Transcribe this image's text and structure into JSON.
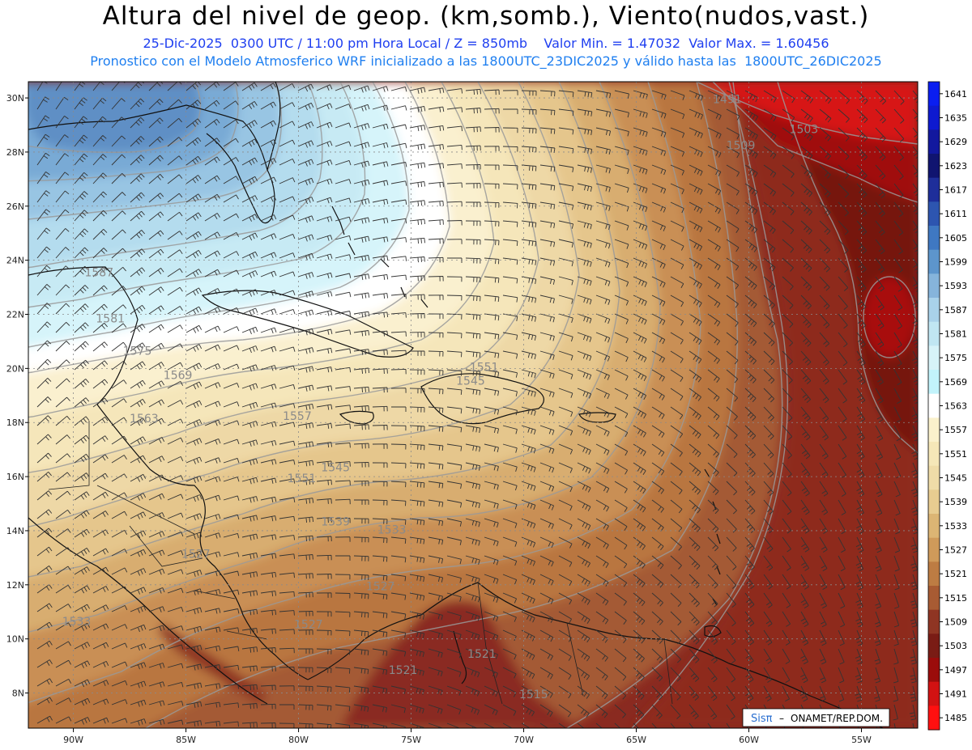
{
  "header": {
    "title": "Altura del nivel de geop. (km,somb.), Viento(nudos,vast.)",
    "line1": "25-Dic-2025  0300 UTC / 11:00 pm Hora Local / Z = 850mb    Valor Min. = 1.47032  Valor Max. = 1.60456",
    "line2": "Pronostico con el Modelo Atmosferico WRF inicializado a las 1800UTC_23DIC2025 y válido hasta las  1800UTC_26DIC2025"
  },
  "map": {
    "lon_range": [
      -92,
      -52.5
    ],
    "lat_range": [
      6.7,
      30.6
    ],
    "x_ticks": [
      {
        "lon": -90,
        "label": "90W"
      },
      {
        "lon": -85,
        "label": "85W"
      },
      {
        "lon": -80,
        "label": "80W"
      },
      {
        "lon": -75,
        "label": "75W"
      },
      {
        "lon": -70,
        "label": "70W"
      },
      {
        "lon": -65,
        "label": "65W"
      },
      {
        "lon": -60,
        "label": "60W"
      },
      {
        "lon": -55,
        "label": "55W"
      }
    ],
    "y_ticks": [
      {
        "lat": 30,
        "label": "30N"
      },
      {
        "lat": 28,
        "label": "28N"
      },
      {
        "lat": 26,
        "label": "26N"
      },
      {
        "lat": 24,
        "label": "24N"
      },
      {
        "lat": 22,
        "label": "22N"
      },
      {
        "lat": 20,
        "label": "20N"
      },
      {
        "lat": 18,
        "label": "18N"
      },
      {
        "lat": 16,
        "label": "16N"
      },
      {
        "lat": 14,
        "label": "14N"
      },
      {
        "lat": 12,
        "label": "12N"
      },
      {
        "lat": 10,
        "label": "10N"
      },
      {
        "lat": 8,
        "label": "8N"
      }
    ],
    "contour_labels": [
      {
        "lon": -89.5,
        "lat": 23.4,
        "text": "1587"
      },
      {
        "lon": -89.0,
        "lat": 21.7,
        "text": "1581"
      },
      {
        "lon": -87.8,
        "lat": 20.5,
        "text": "1575"
      },
      {
        "lon": -86.0,
        "lat": 19.6,
        "text": "1569"
      },
      {
        "lon": -87.5,
        "lat": 18.0,
        "text": "1563"
      },
      {
        "lon": -80.7,
        "lat": 18.1,
        "text": "1557"
      },
      {
        "lon": -80.5,
        "lat": 15.8,
        "text": "1551"
      },
      {
        "lon": -79.0,
        "lat": 16.2,
        "text": "1545"
      },
      {
        "lon": -79.0,
        "lat": 14.2,
        "text": "1539"
      },
      {
        "lon": -76.5,
        "lat": 13.9,
        "text": "1533"
      },
      {
        "lon": -85.2,
        "lat": 13.0,
        "text": "1527"
      },
      {
        "lon": -77.0,
        "lat": 11.8,
        "text": "1527"
      },
      {
        "lon": -80.2,
        "lat": 10.4,
        "text": "1527"
      },
      {
        "lon": -76.0,
        "lat": 8.7,
        "text": "1521"
      },
      {
        "lon": -72.5,
        "lat": 9.3,
        "text": "1521"
      },
      {
        "lon": -70.2,
        "lat": 7.8,
        "text": "1515"
      },
      {
        "lon": -61.6,
        "lat": 29.8,
        "text": "1491"
      },
      {
        "lon": -58.2,
        "lat": 28.7,
        "text": "1503"
      },
      {
        "lon": -61.0,
        "lat": 28.1,
        "text": "1509"
      },
      {
        "lon": -72.4,
        "lat": 19.9,
        "text": "1551"
      },
      {
        "lon": -73.0,
        "lat": 19.4,
        "text": "1545"
      },
      {
        "lon": -90.5,
        "lat": 10.5,
        "text": "1533"
      }
    ]
  },
  "colorbar": {
    "levels": [
      "1641",
      "1635",
      "1629",
      "1623",
      "1617",
      "1611",
      "1605",
      "1599",
      "1593",
      "1587",
      "1581",
      "1575",
      "1569",
      "1563",
      "1557",
      "1551",
      "1545",
      "1539",
      "1533",
      "1527",
      "1521",
      "1515",
      "1509",
      "1503",
      "1497",
      "1491",
      "1485"
    ],
    "colors": [
      "#0a1ef0",
      "#0e1ad0",
      "#12189e",
      "#101470",
      "#1e2e9a",
      "#2d55b0",
      "#3f78c2",
      "#5d95cc",
      "#86b4db",
      "#a9d2ea",
      "#c0e6f2",
      "#d7f3f8",
      "#c2f3fb",
      "#ffffff",
      "#faf1cc",
      "#f5e7b8",
      "#efdca8",
      "#e8cc90",
      "#dcb574",
      "#cf9a5a",
      "#bd7c43",
      "#a85b33",
      "#8f3523",
      "#7a1c15",
      "#9b0c0b",
      "#d21212",
      "#ff1010"
    ]
  },
  "credit": {
    "logo": "Sisπ",
    "text": "ONAMET/REP.DOM."
  }
}
